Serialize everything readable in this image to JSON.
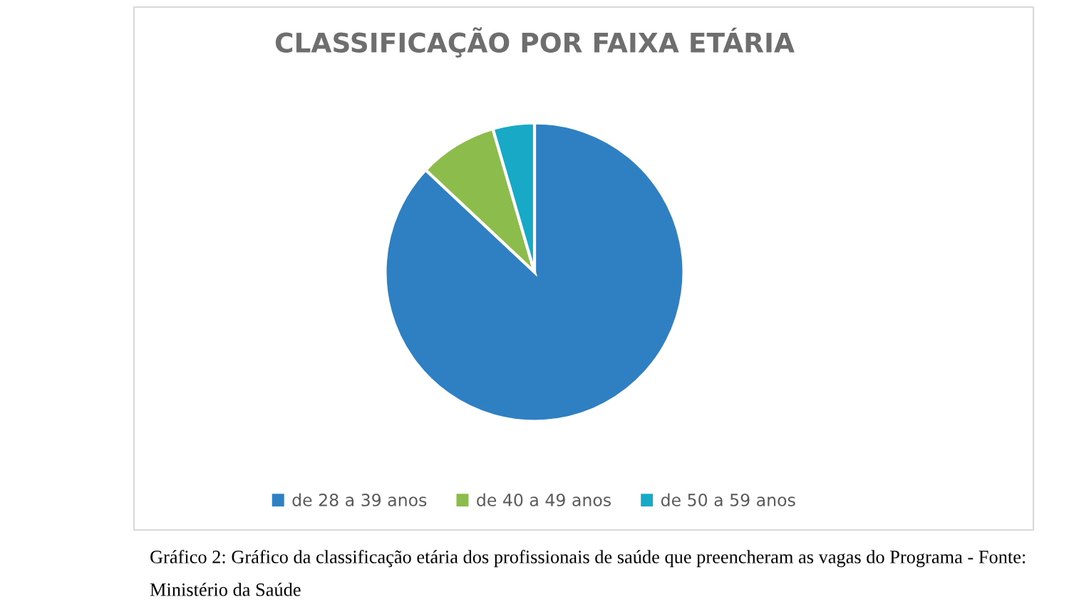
{
  "chart_data": {
    "type": "pie",
    "title": "CLASSIFICAÇÃO POR FAIXA ETÁRIA",
    "categories": [
      "de 28 a 39 anos",
      "de 40 a 49 anos",
      "de 50 a 59 anos"
    ],
    "values": [
      87,
      8.5,
      4.5
    ],
    "colors": [
      "#2e80c2",
      "#8cbd4c",
      "#18a9c6"
    ],
    "legend": "bottom",
    "annotations": [
      "Gráfico 2: Gráfico da classificação etária dos profissionais de saúde que preencheram as vagas do Programa - Fonte: Ministério da Saúde"
    ]
  }
}
